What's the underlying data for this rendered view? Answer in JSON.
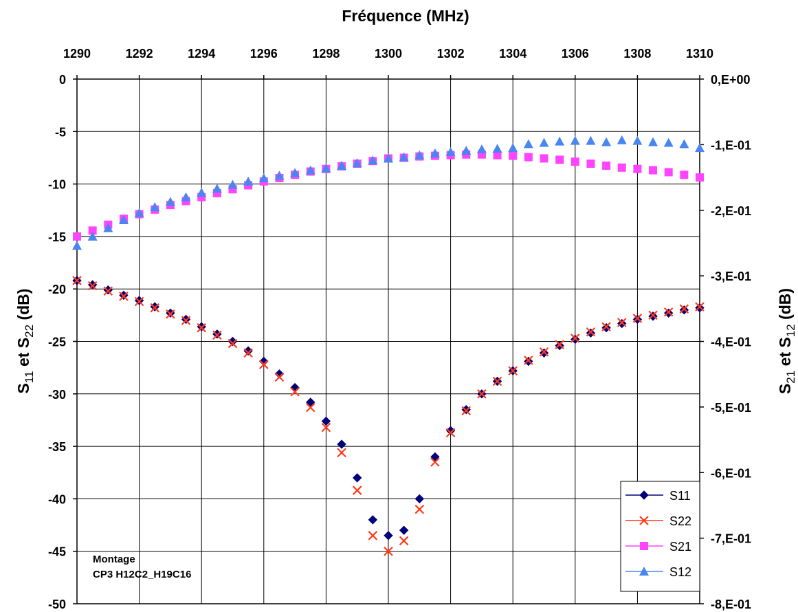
{
  "chart_data": {
    "type": "scatter",
    "title": "Fréquence (MHz)",
    "xlabel": "Fréquence (MHz)",
    "ylabel_left": {
      "base": "S",
      "sub1": "11",
      "mid": " et S",
      "sub2": "22",
      "tail": " (dB)"
    },
    "ylabel_right": {
      "base": "S",
      "sub1": "21",
      "mid": " et S",
      "sub2": "12",
      "tail": " (dB)"
    },
    "xlim": [
      1290,
      1310
    ],
    "ylim_left": [
      -50,
      0
    ],
    "ylim_right": [
      -0.8,
      0
    ],
    "x_ticks": [
      1290,
      1292,
      1294,
      1296,
      1298,
      1300,
      1302,
      1304,
      1306,
      1308,
      1310
    ],
    "y_left_ticks": [
      0,
      -5,
      -10,
      -15,
      -20,
      -25,
      -30,
      -35,
      -40,
      -45,
      -50
    ],
    "y_right_ticks": [
      "0,E+00",
      "-1,E-01",
      "-2,E-01",
      "-3,E-01",
      "-4,E-01",
      "-5,E-01",
      "-6,E-01",
      "-7,E-01",
      "-8,E-01"
    ],
    "grid": true,
    "legend_position": "bottom-right",
    "note": [
      "Montage",
      "CP3 H12C2_H19C16"
    ],
    "series": [
      {
        "name": "S11",
        "axis": "left",
        "color": "#00007a",
        "marker": "diamond",
        "x": [
          1290,
          1290.5,
          1291,
          1291.5,
          1292,
          1292.5,
          1293,
          1293.5,
          1294,
          1294.5,
          1295,
          1295.5,
          1296,
          1296.5,
          1297,
          1297.5,
          1298,
          1298.5,
          1299,
          1299.5,
          1300,
          1300.5,
          1301,
          1301.5,
          1302,
          1302.5,
          1303,
          1303.5,
          1304,
          1304.5,
          1305,
          1305.5,
          1306,
          1306.5,
          1307,
          1307.5,
          1308,
          1308.5,
          1309,
          1309.5,
          1310
        ],
        "y": [
          -19.2,
          -19.6,
          -20.1,
          -20.6,
          -21.1,
          -21.7,
          -22.3,
          -22.9,
          -23.6,
          -24.3,
          -25.0,
          -25.9,
          -26.9,
          -28.1,
          -29.4,
          -30.8,
          -32.6,
          -34.8,
          -38.0,
          -42.0,
          -43.5,
          -43.0,
          -40.0,
          -36.0,
          -33.5,
          -31.5,
          -30.0,
          -28.8,
          -27.8,
          -26.9,
          -26.1,
          -25.4,
          -24.8,
          -24.2,
          -23.7,
          -23.3,
          -22.9,
          -22.6,
          -22.3,
          -22.0,
          -21.8
        ]
      },
      {
        "name": "S22",
        "axis": "left",
        "color": "#ff3c1a",
        "marker": "x",
        "x": [
          1290,
          1290.5,
          1291,
          1291.5,
          1292,
          1292.5,
          1293,
          1293.5,
          1294,
          1294.5,
          1295,
          1295.5,
          1296,
          1296.5,
          1297,
          1297.5,
          1298,
          1298.5,
          1299,
          1299.5,
          1300,
          1300.5,
          1301,
          1301.5,
          1302,
          1302.5,
          1303,
          1303.5,
          1304,
          1304.5,
          1305,
          1305.5,
          1306,
          1306.5,
          1307,
          1307.5,
          1308,
          1308.5,
          1309,
          1309.5,
          1310
        ],
        "y": [
          -19.2,
          -19.7,
          -20.2,
          -20.7,
          -21.2,
          -21.8,
          -22.4,
          -23.0,
          -23.7,
          -24.4,
          -25.2,
          -26.1,
          -27.2,
          -28.4,
          -29.8,
          -31.3,
          -33.2,
          -35.6,
          -39.2,
          -43.5,
          -45.0,
          -44.0,
          -41.0,
          -36.5,
          -33.7,
          -31.6,
          -30.0,
          -28.8,
          -27.8,
          -26.8,
          -26.0,
          -25.3,
          -24.7,
          -24.1,
          -23.6,
          -23.2,
          -22.8,
          -22.5,
          -22.2,
          -21.9,
          -21.7
        ]
      },
      {
        "name": "S21",
        "axis": "right",
        "color": "#ff44ff",
        "marker": "square",
        "x": [
          1290,
          1290.5,
          1291,
          1291.5,
          1292,
          1292.5,
          1293,
          1293.5,
          1294,
          1294.5,
          1295,
          1295.5,
          1296,
          1296.5,
          1297,
          1297.5,
          1298,
          1298.5,
          1299,
          1299.5,
          1300,
          1300.5,
          1301,
          1301.5,
          1302,
          1302.5,
          1303,
          1303.5,
          1304,
          1304.5,
          1305,
          1305.5,
          1306,
          1306.5,
          1307,
          1307.5,
          1308,
          1308.5,
          1309,
          1309.5,
          1310
        ],
        "y": [
          -0.24,
          -0.231,
          -0.222,
          -0.213,
          -0.206,
          -0.199,
          -0.192,
          -0.186,
          -0.18,
          -0.174,
          -0.168,
          -0.162,
          -0.156,
          -0.151,
          -0.146,
          -0.141,
          -0.137,
          -0.133,
          -0.129,
          -0.125,
          -0.121,
          -0.12,
          -0.118,
          -0.117,
          -0.116,
          -0.115,
          -0.115,
          -0.116,
          -0.117,
          -0.119,
          -0.121,
          -0.123,
          -0.126,
          -0.129,
          -0.132,
          -0.135,
          -0.137,
          -0.139,
          -0.142,
          -0.146,
          -0.15
        ]
      },
      {
        "name": "S12",
        "axis": "right",
        "color": "#4a86f0",
        "marker": "triangle",
        "x": [
          1290,
          1290.5,
          1291,
          1291.5,
          1292,
          1292.5,
          1293,
          1293.5,
          1294,
          1294.5,
          1295,
          1295.5,
          1296,
          1296.5,
          1297,
          1297.5,
          1298,
          1298.5,
          1299,
          1299.5,
          1300,
          1300.5,
          1301,
          1301.5,
          1302,
          1302.5,
          1303,
          1303.5,
          1304,
          1304.5,
          1305,
          1305.5,
          1306,
          1306.5,
          1307,
          1307.5,
          1308,
          1308.5,
          1309,
          1309.5,
          1310
        ],
        "y": [
          -0.254,
          -0.24,
          -0.227,
          -0.215,
          -0.204,
          -0.195,
          -0.187,
          -0.18,
          -0.173,
          -0.167,
          -0.161,
          -0.156,
          -0.151,
          -0.147,
          -0.143,
          -0.139,
          -0.136,
          -0.132,
          -0.128,
          -0.124,
          -0.121,
          -0.119,
          -0.116,
          -0.113,
          -0.111,
          -0.109,
          -0.107,
          -0.106,
          -0.105,
          -0.099,
          -0.097,
          -0.095,
          -0.094,
          -0.094,
          -0.096,
          -0.093,
          -0.094,
          -0.096,
          -0.097,
          -0.099,
          -0.105
        ]
      }
    ]
  }
}
